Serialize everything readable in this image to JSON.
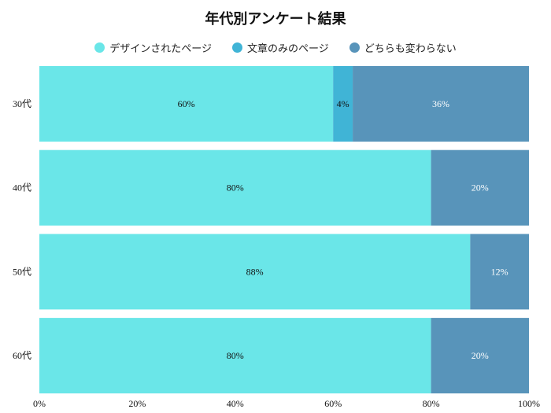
{
  "chart_data": {
    "type": "bar",
    "orientation": "horizontal",
    "stacked": true,
    "title": "年代別アンケート結果",
    "categories": [
      "30代",
      "40代",
      "50代",
      "60代"
    ],
    "series": [
      {
        "name": "デザインされたページ",
        "values": [
          60,
          80,
          88,
          80
        ],
        "color": "#6ae6e8",
        "label_color": "#111111"
      },
      {
        "name": "文章のみのページ",
        "values": [
          4,
          0,
          0,
          0
        ],
        "color": "#40b4d6",
        "label_color": "#111111"
      },
      {
        "name": "どちらも変わらない",
        "values": [
          36,
          20,
          12,
          20
        ],
        "color": "#5894ba",
        "label_color": "#ffffff"
      }
    ],
    "xlim": [
      0,
      100
    ],
    "xticks": [
      "0%",
      "20%",
      "40%",
      "60%",
      "80%",
      "100%"
    ],
    "legend_position": "top",
    "grid": false
  }
}
